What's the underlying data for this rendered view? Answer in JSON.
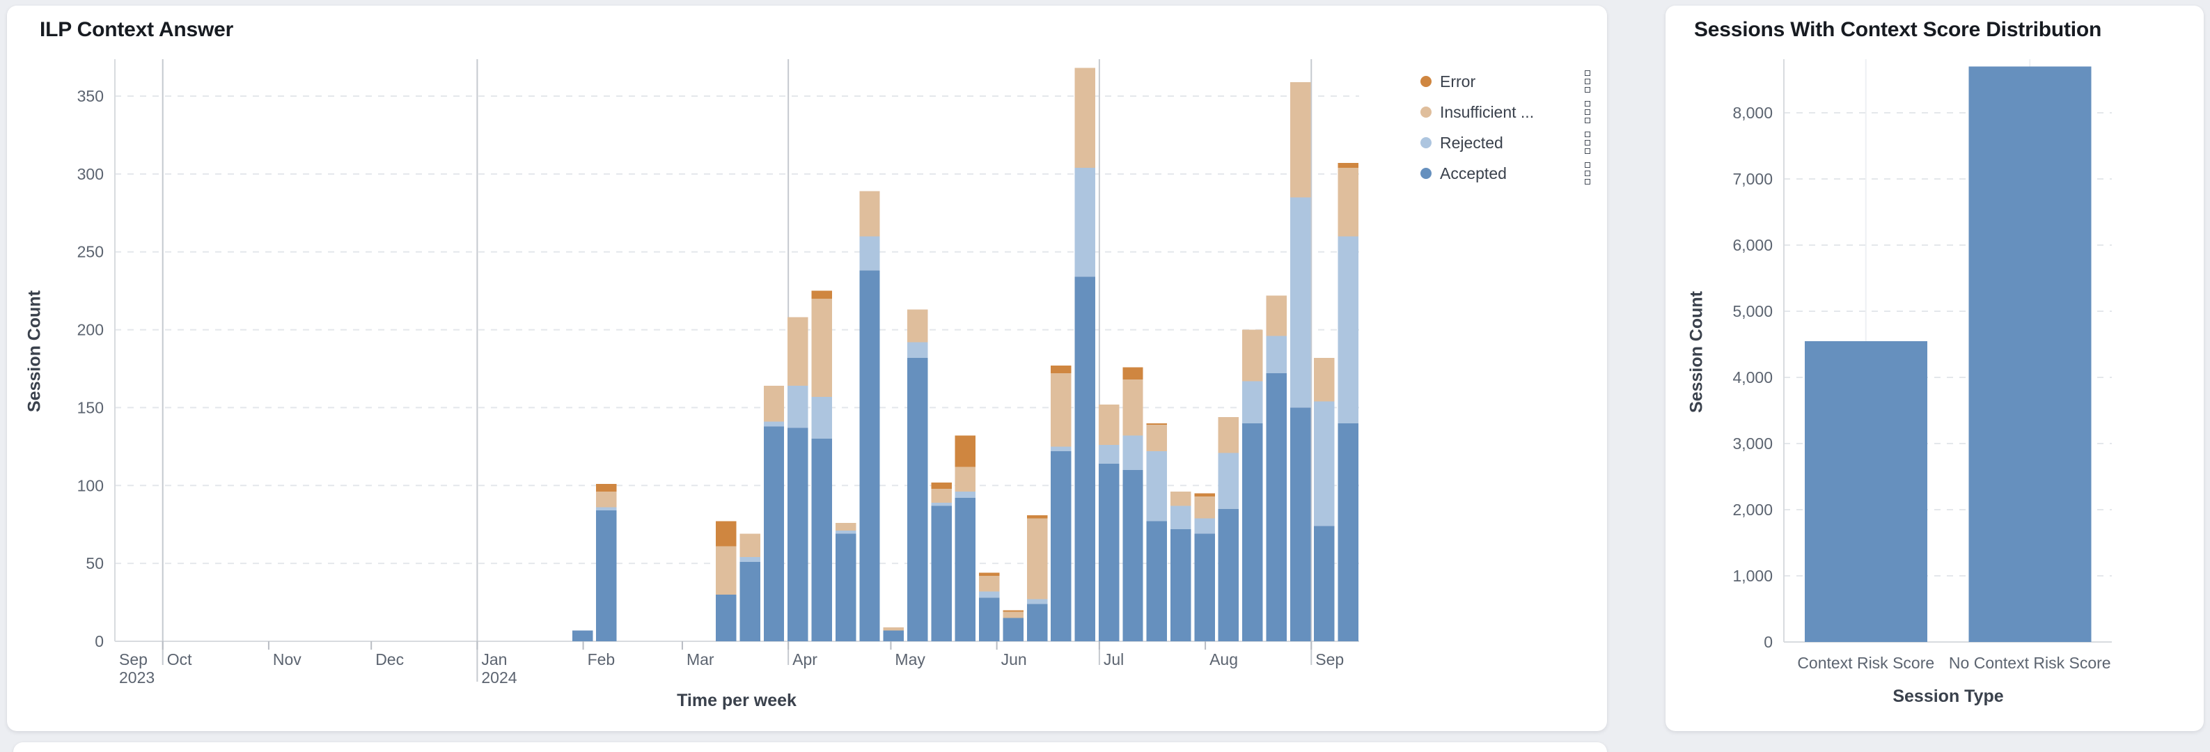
{
  "page": {
    "background": "#ECEEF2",
    "card_background": "#FFFFFF"
  },
  "colors": {
    "accepted": "#6690BE",
    "rejected": "#ADC5DF",
    "insufficient": "#DFBE9C",
    "error": "#CF8640",
    "grid": "#E4E7EB",
    "axis_line": "#D8DBDF",
    "quarter_line": "#C5C9CF",
    "month_tick": "#B8BCC3",
    "category_line": "#EEF0F3",
    "tick_text": "#5C6470",
    "axis_title_text": "#3A414C",
    "title_text": "#171B21"
  },
  "left_chart": {
    "title": "ILP Context Answer",
    "y_axis_title": "Session Count",
    "x_axis_title": "Time per week",
    "legend": [
      {
        "label": "Error",
        "color_key": "error"
      },
      {
        "label": "Insufficient ...",
        "color_key": "insufficient"
      },
      {
        "label": "Rejected",
        "color_key": "rejected"
      },
      {
        "label": "Accepted",
        "color_key": "accepted"
      }
    ]
  },
  "right_chart": {
    "title": "Sessions With Context Score Distribution",
    "y_axis_title": "Session Count",
    "x_axis_title": "Session Type"
  },
  "chart_data": [
    {
      "type": "bar",
      "stacked": true,
      "title": "ILP Context Answer",
      "xlabel": "Time per week",
      "ylabel": "Session Count",
      "ylim": [
        0,
        374
      ],
      "yticks": [
        0,
        50,
        100,
        150,
        200,
        250,
        300,
        350
      ],
      "grid": "dashed-horizontal",
      "legend_position": "top-right",
      "legend": [
        "Error",
        "Insufficient ...",
        "Rejected",
        "Accepted"
      ],
      "x_axis": {
        "kind": "time-weekly",
        "axis_span_days": 364,
        "months": [
          {
            "label": "Sep",
            "sublabel": "2023",
            "day": 0
          },
          {
            "label": "Oct",
            "day": 14
          },
          {
            "label": "Nov",
            "day": 45
          },
          {
            "label": "Dec",
            "day": 75
          },
          {
            "label": "Jan",
            "sublabel": "2024",
            "day": 106
          },
          {
            "label": "Feb",
            "day": 137
          },
          {
            "label": "Mar",
            "day": 166
          },
          {
            "label": "Apr",
            "day": 197
          },
          {
            "label": "May",
            "day": 227
          },
          {
            "label": "Jun",
            "day": 258
          },
          {
            "label": "Jul",
            "day": 288
          },
          {
            "label": "Aug",
            "day": 319
          },
          {
            "label": "Sep",
            "day": 350
          }
        ],
        "quarter_line_days": [
          14,
          106,
          197,
          288,
          350
        ]
      },
      "stack_order_bottom_to_top": [
        "accepted",
        "rejected",
        "insufficient",
        "error"
      ],
      "bars": [
        {
          "week_slot": 19,
          "accepted": 7,
          "rejected": 0,
          "insufficient": 0,
          "error": 0
        },
        {
          "week_slot": 20,
          "accepted": 84,
          "rejected": 2,
          "insufficient": 10,
          "error": 5
        },
        {
          "week_slot": 25,
          "accepted": 30,
          "rejected": 0,
          "insufficient": 31,
          "error": 16
        },
        {
          "week_slot": 26,
          "accepted": 51,
          "rejected": 3,
          "insufficient": 15,
          "error": 0
        },
        {
          "week_slot": 27,
          "accepted": 138,
          "rejected": 3,
          "insufficient": 23,
          "error": 0
        },
        {
          "week_slot": 28,
          "accepted": 137,
          "rejected": 27,
          "insufficient": 44,
          "error": 0
        },
        {
          "week_slot": 29,
          "accepted": 130,
          "rejected": 27,
          "insufficient": 63,
          "error": 5
        },
        {
          "week_slot": 30,
          "accepted": 69,
          "rejected": 2,
          "insufficient": 5,
          "error": 0
        },
        {
          "week_slot": 31,
          "accepted": 238,
          "rejected": 22,
          "insufficient": 29,
          "error": 0
        },
        {
          "week_slot": 32,
          "accepted": 7,
          "rejected": 0,
          "insufficient": 2,
          "error": 0
        },
        {
          "week_slot": 33,
          "accepted": 182,
          "rejected": 10,
          "insufficient": 21,
          "error": 0
        },
        {
          "week_slot": 34,
          "accepted": 87,
          "rejected": 2,
          "insufficient": 9,
          "error": 4
        },
        {
          "week_slot": 35,
          "accepted": 92,
          "rejected": 4,
          "insufficient": 16,
          "error": 20
        },
        {
          "week_slot": 36,
          "accepted": 28,
          "rejected": 4,
          "insufficient": 10,
          "error": 2
        },
        {
          "week_slot": 37,
          "accepted": 15,
          "rejected": 0,
          "insufficient": 4,
          "error": 1
        },
        {
          "week_slot": 38,
          "accepted": 24,
          "rejected": 3,
          "insufficient": 52,
          "error": 2
        },
        {
          "week_slot": 39,
          "accepted": 122,
          "rejected": 3,
          "insufficient": 47,
          "error": 5
        },
        {
          "week_slot": 40,
          "accepted": 234,
          "rejected": 70,
          "insufficient": 64,
          "error": 0
        },
        {
          "week_slot": 41,
          "accepted": 114,
          "rejected": 12,
          "insufficient": 26,
          "error": 0
        },
        {
          "week_slot": 42,
          "accepted": 110,
          "rejected": 22,
          "insufficient": 36,
          "error": 8
        },
        {
          "week_slot": 43,
          "accepted": 77,
          "rejected": 45,
          "insufficient": 17,
          "error": 1
        },
        {
          "week_slot": 44,
          "accepted": 72,
          "rejected": 15,
          "insufficient": 9,
          "error": 0
        },
        {
          "week_slot": 45,
          "accepted": 69,
          "rejected": 10,
          "insufficient": 14,
          "error": 2
        },
        {
          "week_slot": 46,
          "accepted": 85,
          "rejected": 36,
          "insufficient": 23,
          "error": 0
        },
        {
          "week_slot": 47,
          "accepted": 140,
          "rejected": 27,
          "insufficient": 33,
          "error": 0
        },
        {
          "week_slot": 48,
          "accepted": 172,
          "rejected": 24,
          "insufficient": 26,
          "error": 0
        },
        {
          "week_slot": 49,
          "accepted": 150,
          "rejected": 135,
          "insufficient": 74,
          "error": 0
        },
        {
          "week_slot": 50,
          "accepted": 74,
          "rejected": 80,
          "insufficient": 28,
          "error": 0
        },
        {
          "week_slot": 51,
          "accepted": 140,
          "rejected": 120,
          "insufficient": 44,
          "error": 3
        }
      ]
    },
    {
      "type": "bar",
      "title": "Sessions With Context Score Distribution",
      "xlabel": "Session Type",
      "ylabel": "Session Count",
      "ylim": [
        0,
        8800
      ],
      "yticks": [
        0,
        1000,
        2000,
        3000,
        4000,
        5000,
        6000,
        7000,
        8000
      ],
      "ytick_labels": [
        "0",
        "1,000",
        "2,000",
        "3,000",
        "4,000",
        "5,000",
        "6,000",
        "7,000",
        "8,000"
      ],
      "grid": "dashed-horizontal",
      "categories": [
        "Context Risk Score",
        "No Context Risk Score"
      ],
      "values": [
        4550,
        8700
      ],
      "bar_color_key": "accepted"
    }
  ]
}
